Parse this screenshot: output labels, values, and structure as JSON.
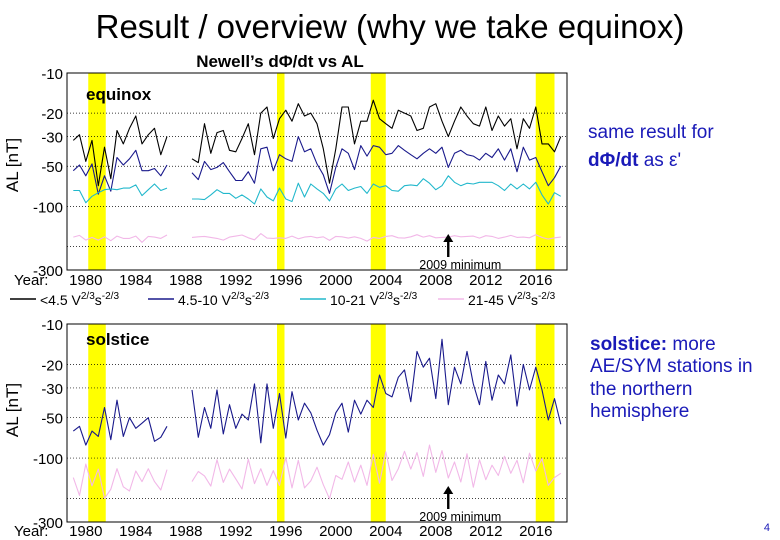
{
  "slide": {
    "title": "Result / overview (why we take equinox)",
    "subtitle": "Newell’s dΦ/dt  vs AL",
    "note_top_line1": "same result for",
    "note_top_line2_bold": "dΦ/dt",
    "note_top_line2_rest": " as ε'",
    "note_bottom_bold": "solstice:",
    "note_bottom_rest": " more AE/SYM stations in the northern hemisphere",
    "page_number": "4"
  },
  "legend": [
    {
      "label": "< 4.5 V²ᐟ³s⁻²ᐟ³",
      "text": "<4.5 V",
      "color": "#000000"
    },
    {
      "label": "4.5-10 V²ᐟ³s⁻²ᐟ³",
      "text": "4.5-10 V",
      "color": "#1a1a8c"
    },
    {
      "label": "10-21 V²ᐟ³s⁻²ᐟ³",
      "text": "10-21 V",
      "color": "#22b8cc"
    },
    {
      "label": "21-45 V²ᐟ³s⁻²ᐟ³",
      "text": "21-45 V",
      "color": "#f2b8e8"
    }
  ],
  "colors": {
    "highlight": "#ffff00",
    "series_black": "#000000",
    "series_navy": "#1a1a8c",
    "series_cyan": "#22b8cc",
    "series_pink": "#f2b8e8",
    "note_text": "#1a1ab8"
  },
  "chart_data": [
    {
      "type": "line",
      "name": "equinox",
      "panel_label": "equinox",
      "ylabel": "AL [nT]",
      "xlabel": "Year:",
      "x_ticks": [
        1980,
        1984,
        1988,
        1992,
        1996,
        2000,
        2004,
        2008,
        2012,
        2016
      ],
      "y_ticks": [
        -10,
        -20,
        -30,
        -50,
        -100,
        -300
      ],
      "y_scale": "log",
      "ylim": [
        -10,
        -300
      ],
      "xlim": [
        1978.5,
        2018.5
      ],
      "highlight_bands": [
        [
          1980.2,
          1981.6
        ],
        [
          1995.3,
          1995.9
        ],
        [
          2002.8,
          2004.0
        ],
        [
          2016.0,
          2017.5
        ]
      ],
      "annotation": "2009 minimum",
      "annotation_x": 2009,
      "series": [
        {
          "name": "<4.5",
          "color": "#000000",
          "start": 1979.0,
          "step": 0.5,
          "values": [
            -32,
            -29,
            -46,
            -32,
            -70,
            -36,
            -62,
            -27,
            -34,
            -26,
            -21,
            -34,
            -29,
            -26,
            -41,
            -30,
            null,
            null,
            null,
            -44,
            -47,
            -24,
            -40,
            -28,
            -27,
            -38,
            -39,
            -31,
            -24,
            -41,
            -20,
            -18,
            -31,
            -22,
            -19,
            -23,
            -17,
            -21,
            -20,
            -24,
            -37,
            -67,
            -37,
            -18,
            -18,
            -34,
            -23,
            -23,
            -16,
            -22,
            -24,
            -26,
            -19,
            -20,
            -21,
            -27,
            -26,
            -18,
            -17,
            -23,
            -30,
            -23,
            -18,
            -21,
            -24,
            -25,
            -18,
            -27,
            -21,
            -25,
            -22,
            -37,
            -22,
            -26,
            -18,
            -34,
            -34,
            -39,
            -30
          ]
        },
        {
          "name": "4.5-10",
          "color": "#1a1a8c",
          "start": 1979.0,
          "step": 0.5,
          "values": [
            -54,
            -49,
            -59,
            -48,
            -81,
            -59,
            -77,
            -43,
            -49,
            -44,
            -38,
            -54,
            -54,
            -52,
            -59,
            -49,
            null,
            null,
            null,
            -56,
            -63,
            -46,
            -53,
            -51,
            -47,
            -55,
            -64,
            -64,
            -55,
            -67,
            -37,
            -36,
            -54,
            -41,
            -44,
            -46,
            -30,
            -39,
            -37,
            -48,
            -58,
            -80,
            -51,
            -37,
            -40,
            -53,
            -35,
            -42,
            -35,
            -36,
            -41,
            -40,
            -35,
            -38,
            -41,
            -44,
            -40,
            -37,
            -40,
            -36,
            -51,
            -40,
            -38,
            -41,
            -42,
            -45,
            -40,
            -43,
            -37,
            -45,
            -37,
            -55,
            -36,
            -45,
            -43,
            -55,
            -70,
            -61,
            -50
          ]
        },
        {
          "name": "10-21",
          "color": "#22b8cc",
          "start": 1979.0,
          "step": 0.5,
          "values": [
            -76,
            -76,
            -94,
            -84,
            -79,
            -75,
            -74,
            -75,
            -73,
            -73,
            -69,
            -83,
            -75,
            -68,
            -76,
            -73,
            null,
            null,
            null,
            -88,
            -88,
            -89,
            -82,
            -75,
            -80,
            -80,
            -87,
            -82,
            -88,
            -96,
            -74,
            -85,
            -91,
            -73,
            -88,
            -92,
            -67,
            -85,
            -68,
            -74,
            -80,
            -91,
            -74,
            -68,
            -76,
            -73,
            -71,
            -80,
            -68,
            -72,
            -70,
            -76,
            -77,
            -70,
            -69,
            -70,
            -62,
            -67,
            -75,
            -70,
            -59,
            -66,
            -70,
            -67,
            -68,
            -66,
            -66,
            -66,
            -70,
            -76,
            -68,
            -74,
            -68,
            -74,
            -66,
            -82,
            -96,
            -79,
            -84
          ]
        },
        {
          "name": "21-45",
          "color": "#f2b8e8",
          "start": 1979.0,
          "step": 0.5,
          "values": [
            -170,
            -165,
            -179,
            -171,
            -179,
            -169,
            -181,
            -167,
            -174,
            -174,
            -167,
            -186,
            -168,
            -170,
            -174,
            -164,
            null,
            null,
            null,
            -171,
            -169,
            -168,
            -171,
            -174,
            -179,
            -170,
            -167,
            -164,
            -172,
            -178,
            -160,
            -173,
            -174,
            -172,
            -174,
            -167,
            -175,
            -170,
            -168,
            -172,
            -169,
            -180,
            -168,
            -169,
            -173,
            -169,
            -174,
            -182,
            -171,
            -174,
            -168,
            -166,
            -172,
            -173,
            -169,
            -163,
            -170,
            -166,
            -172,
            -171,
            -170,
            -166,
            -169,
            -168,
            -167,
            -173,
            -166,
            -168,
            -174,
            -170,
            -165,
            -171,
            -170,
            -172,
            -163,
            -171,
            -176,
            -172,
            -170
          ]
        }
      ]
    },
    {
      "type": "line",
      "name": "solstice",
      "panel_label": "solstice",
      "ylabel": "AL [nT]",
      "xlabel": "Year:",
      "x_ticks": [
        1980,
        1984,
        1988,
        1992,
        1996,
        2000,
        2004,
        2008,
        2012,
        2016
      ],
      "y_ticks": [
        -10,
        -20,
        -30,
        -50,
        -100,
        -300
      ],
      "y_scale": "log",
      "ylim": [
        -10,
        -300
      ],
      "xlim": [
        1978.5,
        2018.5
      ],
      "highlight_bands": [
        [
          1980.2,
          1981.6
        ],
        [
          1995.3,
          1995.9
        ],
        [
          2002.8,
          2004.0
        ],
        [
          2016.0,
          2017.5
        ]
      ],
      "annotation": "2009 minimum",
      "annotation_x": 2009,
      "series": [
        {
          "name": "4.5-10",
          "color": "#1a1a8c",
          "start": 1979.0,
          "step": 0.5,
          "values": [
            -63,
            -58,
            -80,
            -63,
            -69,
            -42,
            -73,
            -37,
            -69,
            -50,
            -60,
            -55,
            -50,
            -75,
            -70,
            -58,
            null,
            null,
            null,
            -31,
            -70,
            -42,
            -60,
            -31,
            -66,
            -40,
            -60,
            -47,
            -52,
            -28,
            -77,
            -28,
            -60,
            -33,
            -71,
            -32,
            -52,
            -39,
            -46,
            -62,
            -80,
            -67,
            -46,
            -39,
            -64,
            -37,
            -47,
            -37,
            -42,
            -24,
            -33,
            -35,
            -25,
            -22,
            -38,
            -16,
            -21,
            -18,
            -36,
            -13,
            -40,
            -21,
            -28,
            -16,
            -28,
            -40,
            -19,
            -37,
            -24,
            -28,
            -17,
            -41,
            -20,
            -31,
            -21,
            -31,
            -52,
            -36,
            -56
          ]
        },
        {
          "name": "21-45",
          "color": "#f2b8e8",
          "start": 1979.0,
          "step": 0.5,
          "values": [
            -140,
            -190,
            -111,
            -161,
            -121,
            -200,
            -171,
            -120,
            -164,
            -176,
            -125,
            -150,
            -120,
            -150,
            -173,
            -122,
            null,
            null,
            null,
            -150,
            -126,
            -136,
            -162,
            -103,
            -152,
            -121,
            -143,
            -170,
            -102,
            -155,
            -120,
            -160,
            -124,
            -160,
            -99,
            -167,
            -104,
            -167,
            -148,
            -117,
            -158,
            -201,
            -135,
            -144,
            -107,
            -151,
            -113,
            -160,
            -94,
            -154,
            -90,
            -147,
            -120,
            -89,
            -121,
            -91,
            -137,
            -80,
            -128,
            -88,
            -141,
            -107,
            -151,
            -93,
            -165,
            -103,
            -145,
            -113,
            -135,
            -97,
            -130,
            -104,
            -153,
            -92,
            -125,
            -101,
            -160,
            -140,
            -130
          ]
        }
      ]
    }
  ]
}
